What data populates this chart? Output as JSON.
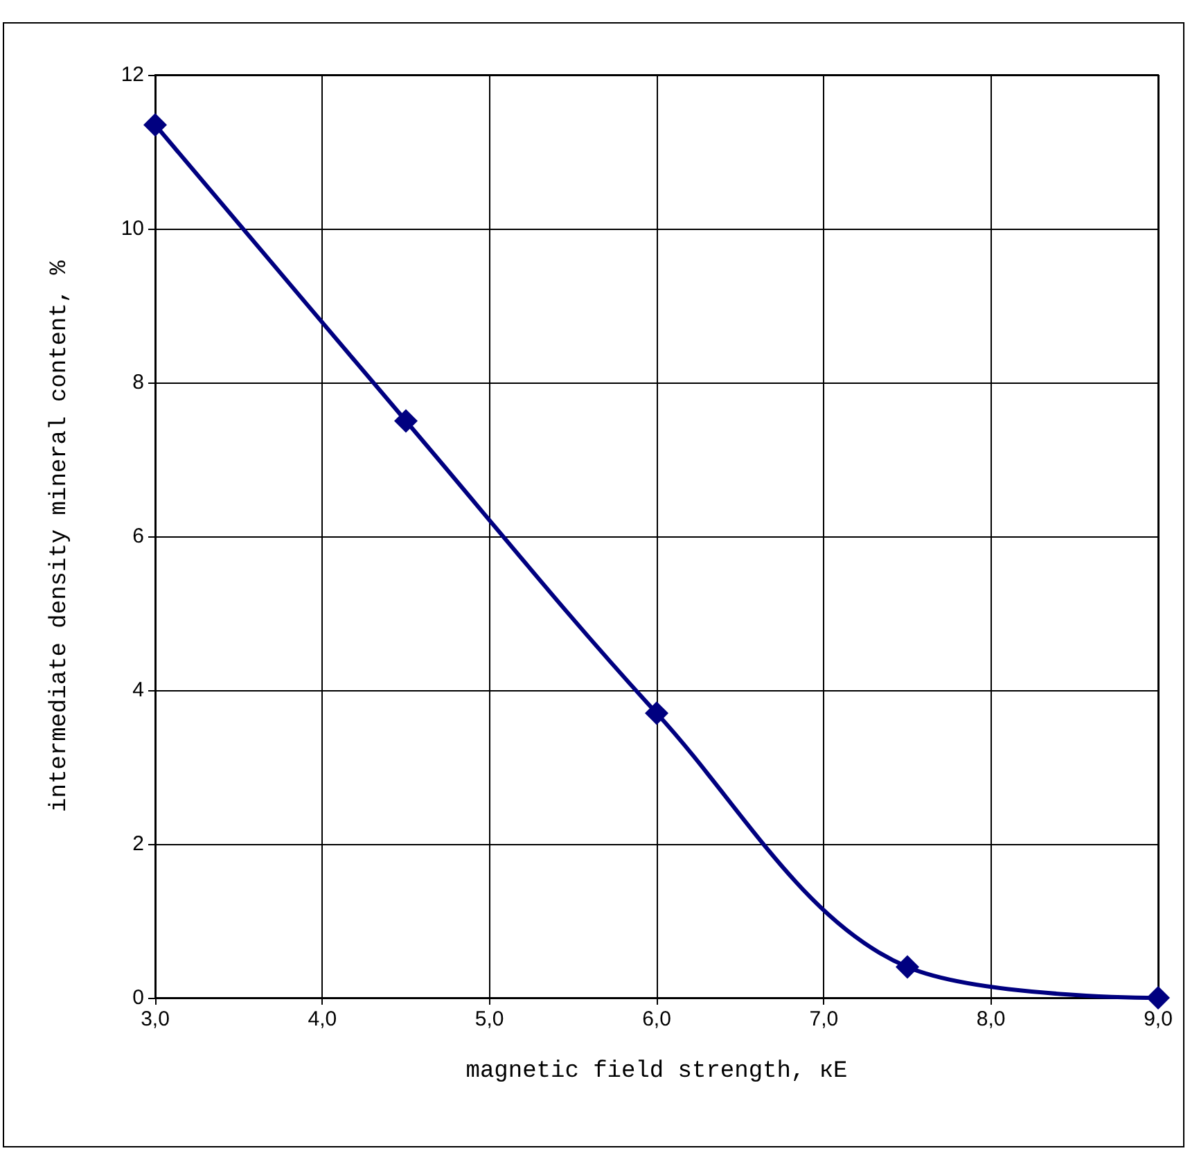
{
  "chart_data": {
    "type": "line",
    "xlabel": "magnetic field strength, кЕ",
    "ylabel": "intermediate density mineral content, %",
    "x": [
      3,
      4.5,
      6,
      7.5,
      9
    ],
    "series": [
      {
        "color": "#000080",
        "values": [
          11.35,
          7.5,
          3.7,
          0.4,
          0
        ]
      }
    ],
    "xlim": [
      3,
      9
    ],
    "xticks": [
      {
        "value": 3,
        "label": "3,0"
      },
      {
        "value": 4,
        "label": "4,0"
      },
      {
        "value": 5,
        "label": "5,0"
      },
      {
        "value": 6,
        "label": "6,0"
      },
      {
        "value": 7,
        "label": "7,0"
      },
      {
        "value": 8,
        "label": "8,0"
      },
      {
        "value": 9,
        "label": "9,0"
      }
    ],
    "ylim": [
      0,
      12
    ],
    "yticks": [
      0,
      2,
      4,
      6,
      8,
      10,
      12
    ],
    "grid": true,
    "marker": "diamond",
    "line_style": "solid"
  }
}
